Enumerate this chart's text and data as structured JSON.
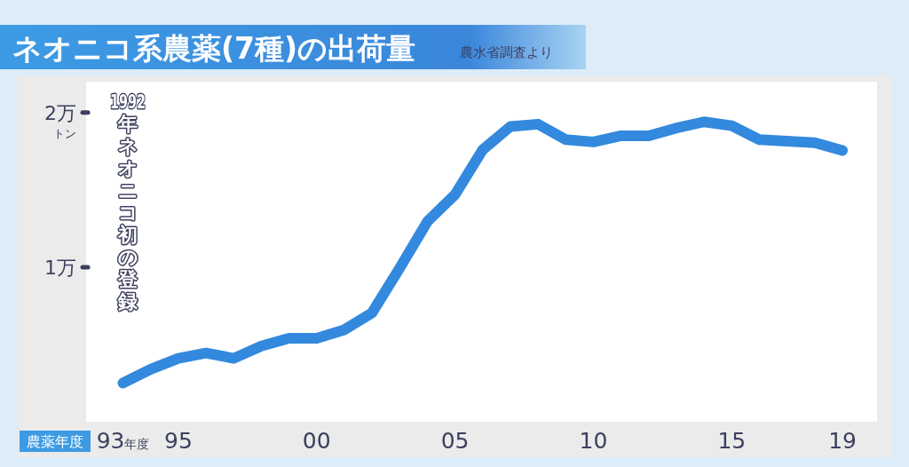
{
  "chart_data": {
    "type": "line",
    "title": "ネオニコ系農薬(7種)の出荷量",
    "subtitle": "農水省調査より",
    "xlabel": "農薬年度",
    "ylabel": "トン",
    "annotations": [
      "1992年ネオニコ初の登録"
    ],
    "x": [
      "1993",
      "1994",
      "1995",
      "1996",
      "1997",
      "1998",
      "1999",
      "2000",
      "2001",
      "2002",
      "2003",
      "2004",
      "2005",
      "2006",
      "2007",
      "2008",
      "2009",
      "2010",
      "2011",
      "2012",
      "2013",
      "2014",
      "2015",
      "2016",
      "2017",
      "2018",
      "2019"
    ],
    "series": [
      {
        "color": "#3389dd",
        "values": [
          0.25,
          0.34,
          0.41,
          0.445,
          0.41,
          0.49,
          0.54,
          0.54,
          0.595,
          0.705,
          0.995,
          1.295,
          1.47,
          1.76,
          1.91,
          1.925,
          1.825,
          1.81,
          1.85,
          1.85,
          1.9,
          1.94,
          1.915,
          1.825,
          1.815,
          1.805,
          1.755
        ]
      }
    ],
    "xlim": [
      "1991-09",
      "2020-04"
    ],
    "ylim": [
      0,
      2.2
    ],
    "xticks": [
      {
        "value": "1993",
        "label": "93年度"
      },
      {
        "value": "1995",
        "label": "95"
      },
      {
        "value": "2000",
        "label": "00"
      },
      {
        "value": "2005",
        "label": "05"
      },
      {
        "value": "2010",
        "label": "10"
      },
      {
        "value": "2015",
        "label": "15"
      },
      {
        "value": "2019",
        "label": "19"
      }
    ],
    "yticks": [
      {
        "value": 1,
        "label": "1万"
      },
      {
        "value": 2,
        "label": "2万"
      }
    ]
  }
}
